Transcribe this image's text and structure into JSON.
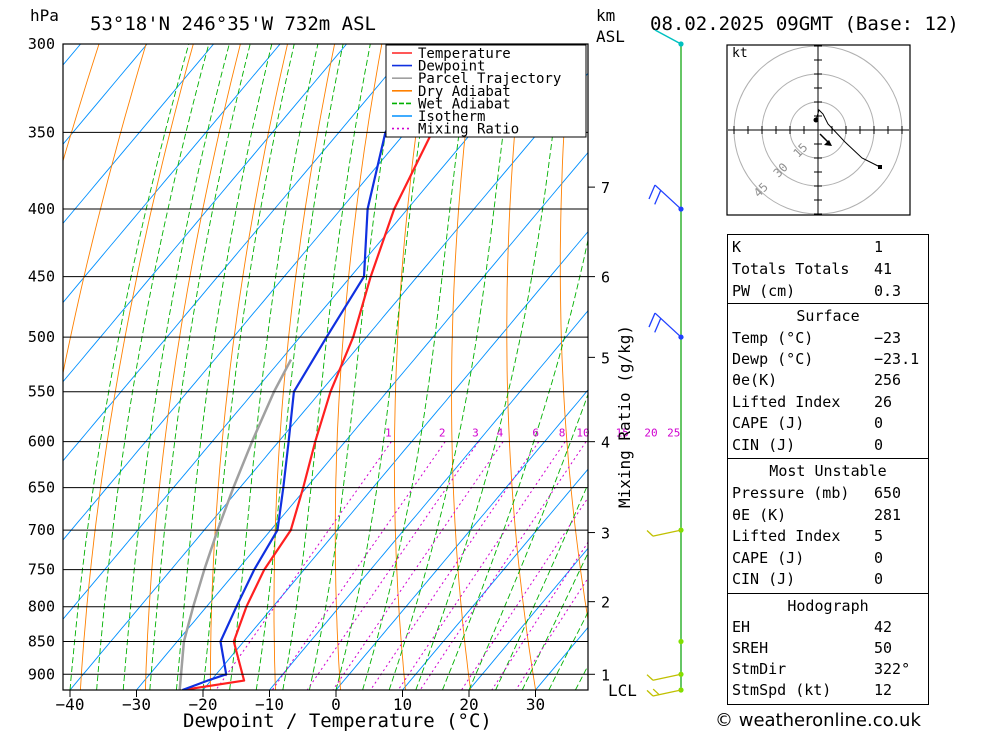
{
  "header": {
    "location": "53°18'N  246°35'W  732m  ASL",
    "date": "08.02.2025  09GMT  (Base: 12)",
    "hpa_label": "hPa",
    "km_label": "km",
    "asl_label": "ASL",
    "lcl_label": "LCL",
    "mixing_ratio_axis": "Mixing Ratio (g/kg)",
    "x_axis_title": "Dewpoint / Temperature (°C)"
  },
  "colors": {
    "temperature": "#ff2020",
    "dewpoint": "#1030e0",
    "parcel": "#a0a0a0",
    "dry_adiabat": "#ff8000",
    "wet_adiabat": "#00b000",
    "isotherm": "#0090ff",
    "mixing_ratio": "#d000d0",
    "wind_line": "#00a000",
    "barb_upper": "#2040ff",
    "barb_low": "#c0c000"
  },
  "chart_data": {
    "type": "line",
    "title": "53°18'N  246°35'W  732m  ASL",
    "xlabel": "Dewpoint / Temperature (°C)",
    "ylabel": "hPa",
    "x_ticks": [
      -40,
      -30,
      -20,
      -10,
      0,
      10,
      20,
      30
    ],
    "x_tick_labels": [
      "−40",
      "−30",
      "−20",
      "−10",
      "0",
      "10",
      "20",
      "30"
    ],
    "pressure_levels": [
      300,
      350,
      400,
      450,
      500,
      550,
      600,
      650,
      700,
      750,
      800,
      850,
      900
    ],
    "km_ticks": [
      {
        "km": 1,
        "p": 900
      },
      {
        "km": 2,
        "p": 793
      },
      {
        "km": 3,
        "p": 703
      },
      {
        "km": 4,
        "p": 600
      },
      {
        "km": 5,
        "p": 518
      },
      {
        "km": 6,
        "p": 450
      },
      {
        "km": 7,
        "p": 385
      }
    ],
    "mixing_ratio_labels": [
      "1",
      "2",
      "3",
      "4",
      "6",
      "8",
      "10",
      "15",
      "20",
      "25"
    ],
    "legend": {
      "placement": "top-right",
      "items": [
        {
          "name": "Temperature",
          "key": "temperature"
        },
        {
          "name": "Dewpoint",
          "key": "dewpoint"
        },
        {
          "name": "Parcel Trajectory",
          "key": "parcel"
        },
        {
          "name": "Dry Adiabat",
          "key": "dry_adiabat"
        },
        {
          "name": "Wet Adiabat",
          "key": "wet_adiabat"
        },
        {
          "name": "Isotherm",
          "key": "isotherm"
        },
        {
          "name": "Mixing Ratio",
          "key": "mixing_ratio"
        }
      ]
    },
    "series": [
      {
        "key": "temperature",
        "points": [
          [
            925,
            -23
          ],
          [
            910,
            -15
          ],
          [
            850,
            -21.5
          ],
          [
            800,
            -24
          ],
          [
            750,
            -26
          ],
          [
            700,
            -27
          ],
          [
            650,
            -30.5
          ],
          [
            600,
            -34.5
          ],
          [
            550,
            -38.5
          ],
          [
            500,
            -42
          ],
          [
            450,
            -47
          ],
          [
            400,
            -52
          ],
          [
            350,
            -56
          ],
          [
            320,
            -52
          ],
          [
            300,
            -48
          ]
        ]
      },
      {
        "key": "dewpoint",
        "points": [
          [
            925,
            -23.1
          ],
          [
            910,
            -20.5
          ],
          [
            900,
            -18.5
          ],
          [
            850,
            -23.5
          ],
          [
            800,
            -25.5
          ],
          [
            750,
            -27.5
          ],
          [
            700,
            -29
          ],
          [
            650,
            -33.5
          ],
          [
            600,
            -38.5
          ],
          [
            550,
            -44
          ],
          [
            500,
            -46
          ],
          [
            450,
            -48
          ],
          [
            400,
            -56
          ],
          [
            350,
            -63
          ],
          [
            320,
            -65
          ],
          [
            300,
            -69
          ]
        ]
      },
      {
        "key": "parcel",
        "points": [
          [
            925,
            -23.5
          ],
          [
            850,
            -29
          ],
          [
            800,
            -32
          ],
          [
            750,
            -35
          ],
          [
            700,
            -38
          ],
          [
            650,
            -41
          ],
          [
            600,
            -44
          ],
          [
            550,
            -47
          ],
          [
            520,
            -48.5
          ]
        ]
      }
    ],
    "wind_profile": [
      {
        "p": 300,
        "color_key": "wind_line"
      },
      {
        "p": 400,
        "barbs": 2,
        "color_key": "barb_upper"
      },
      {
        "p": 500,
        "barbs": 2,
        "color_key": "barb_upper"
      },
      {
        "p": 700,
        "barbs": 1,
        "color_key": "barb_low"
      },
      {
        "p": 850,
        "barbs": 0,
        "color_key": "barb_low"
      },
      {
        "p": 900,
        "barbs": 1,
        "color_key": "barb_low"
      },
      {
        "p": 925,
        "barbs": 2,
        "color_key": "barb_low"
      }
    ]
  },
  "hodograph": {
    "unit_label": "kt",
    "ring_labels": [
      "15",
      "30",
      "45"
    ]
  },
  "indices": {
    "rows": [
      {
        "k": "K",
        "v": "1"
      },
      {
        "k": "Totals Totals",
        "v": "41"
      },
      {
        "k": "PW (cm)",
        "v": "0.3"
      }
    ]
  },
  "surface": {
    "title": "Surface",
    "rows": [
      {
        "k": "Temp (°C)",
        "v": "−23"
      },
      {
        "k": "Dewp (°C)",
        "v": "−23.1"
      },
      {
        "k": "θe(K)",
        "v": "256"
      },
      {
        "k": "Lifted Index",
        "v": "26"
      },
      {
        "k": "CAPE (J)",
        "v": "0"
      },
      {
        "k": "CIN (J)",
        "v": "0"
      }
    ]
  },
  "most_unstable": {
    "title": "Most Unstable",
    "rows": [
      {
        "k": "Pressure (mb)",
        "v": "650"
      },
      {
        "k": "θE (K)",
        "v": "281"
      },
      {
        "k": "Lifted Index",
        "v": "5"
      },
      {
        "k": "CAPE (J)",
        "v": "0"
      },
      {
        "k": "CIN (J)",
        "v": "0"
      }
    ]
  },
  "hodograph_table": {
    "title": "Hodograph",
    "rows": [
      {
        "k": "EH",
        "v": "42"
      },
      {
        "k": "SREH",
        "v": "50"
      },
      {
        "k": "StmDir",
        "v": "322°"
      },
      {
        "k": "StmSpd (kt)",
        "v": "12"
      }
    ]
  },
  "footer": {
    "copyright": "© weatheronline.co.uk"
  }
}
